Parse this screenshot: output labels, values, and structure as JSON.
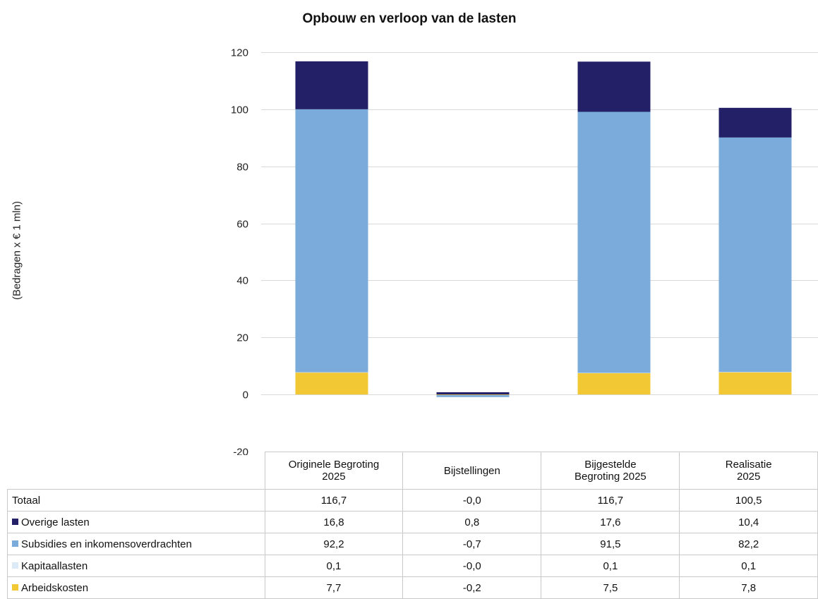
{
  "chart_data": {
    "type": "bar",
    "stacked": true,
    "title": "Opbouw en verloop van de lasten",
    "ylabel": "(Bedragen x € 1 mln)",
    "xlabel": "",
    "ylim": [
      -20,
      120
    ],
    "yticks": [
      "-20",
      "0",
      "20",
      "40",
      "60",
      "80",
      "100",
      "120"
    ],
    "grid": true,
    "categories": [
      "Originele Begroting 2025",
      "Bijstellingen",
      "Bijgestelde Begroting 2025",
      "Realisatie 2025"
    ],
    "category_labels": [
      [
        "Originele Begroting",
        "2025"
      ],
      [
        "Bijstellingen"
      ],
      [
        "Bijgestelde",
        "Begroting 2025"
      ],
      [
        "Realisatie",
        "2025"
      ]
    ],
    "series": [
      {
        "name": "Arbeidskosten",
        "color": "#f2c935",
        "values": [
          7.7,
          -0.2,
          7.5,
          7.8
        ],
        "labels": [
          "7,7",
          "-0,2",
          "7,5",
          "7,8"
        ]
      },
      {
        "name": "Kapitaallasten",
        "color": "#dce9f7",
        "values": [
          0.1,
          -0.0,
          0.1,
          0.1
        ],
        "labels": [
          "0,1",
          "-0,0",
          "0,1",
          "0,1"
        ]
      },
      {
        "name": "Subsidies en inkomensoverdrachten",
        "color": "#7aabdb",
        "values": [
          92.2,
          -0.7,
          91.5,
          82.2
        ],
        "labels": [
          "92,2",
          "-0,7",
          "91,5",
          "82,2"
        ]
      },
      {
        "name": "Overige lasten",
        "color": "#232067",
        "values": [
          16.8,
          0.8,
          17.6,
          10.4
        ],
        "labels": [
          "16,8",
          "0,8",
          "17,6",
          "10,4"
        ]
      }
    ],
    "table_rows": [
      {
        "label": "Totaal",
        "values": [
          "116,7",
          "-0,0",
          "116,7",
          "100,5"
        ]
      },
      {
        "label": "Overige lasten",
        "color": "#232067",
        "values": [
          "16,8",
          "0,8",
          "17,6",
          "10,4"
        ]
      },
      {
        "label": "Subsidies en inkomensoverdrachten",
        "color": "#7aabdb",
        "values": [
          "92,2",
          "-0,7",
          "91,5",
          "82,2"
        ]
      },
      {
        "label": "Kapitaallasten",
        "color": "#dce9f7",
        "values": [
          "0,1",
          "-0,0",
          "0,1",
          "0,1"
        ]
      },
      {
        "label": "Arbeidskosten",
        "color": "#f2c935",
        "values": [
          "7,7",
          "-0,2",
          "7,5",
          "7,8"
        ]
      }
    ]
  }
}
